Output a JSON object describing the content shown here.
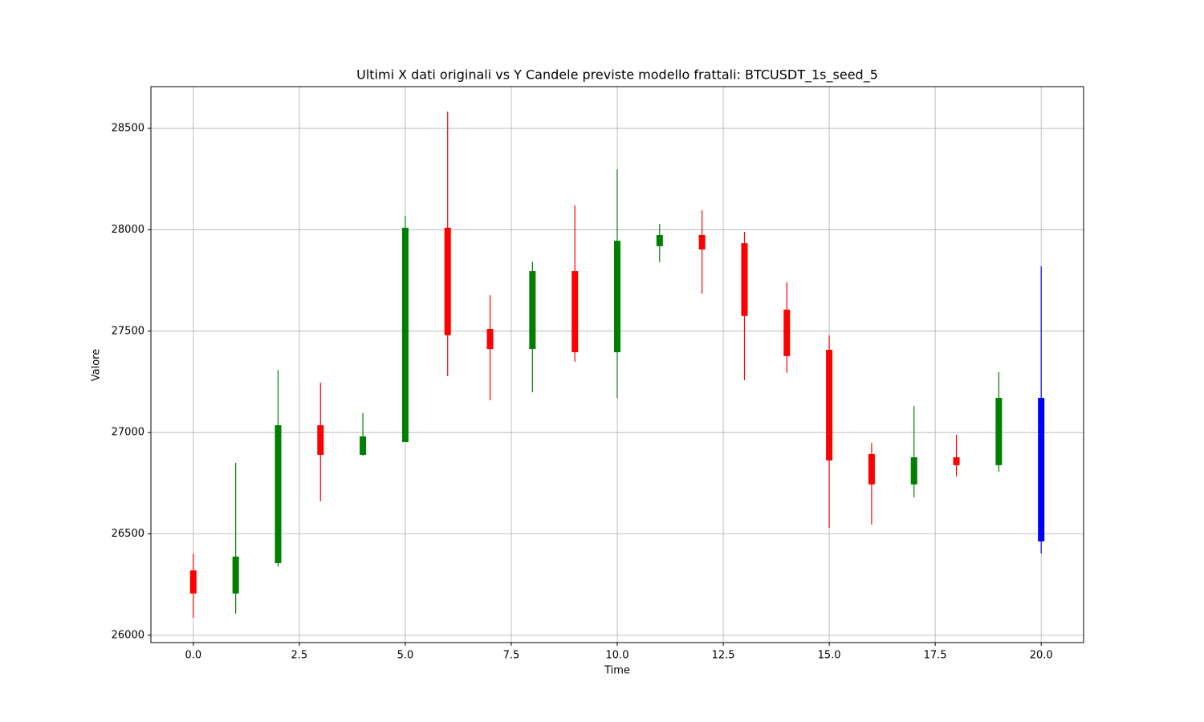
{
  "chart_data": {
    "type": "candlestick",
    "title": "Ultimi X dati originali vs Y Candele previste modello frattali: BTCUSDT_1s_seed_5",
    "x_label": "Time",
    "y_label": "Valore",
    "x": [
      0,
      1,
      2,
      3,
      4,
      5,
      6,
      7,
      8,
      9,
      10,
      11,
      12,
      13,
      14,
      15,
      16,
      17,
      18,
      19,
      20
    ],
    "open": [
      26320,
      26206,
      26356,
      27036,
      26890,
      26953,
      28010,
      27511,
      27412,
      27796,
      27396,
      27919,
      27974,
      27934,
      27606,
      27408,
      26894,
      26744,
      26878,
      26839,
      27171
    ],
    "high": [
      26403,
      26851,
      27309,
      27246,
      27096,
      28069,
      28583,
      27677,
      27843,
      28120,
      28298,
      28029,
      28097,
      27990,
      27741,
      27480,
      26949,
      27131,
      26989,
      27298,
      27820
    ],
    "low": [
      26087,
      26107,
      26340,
      26661,
      26886,
      26953,
      27278,
      27159,
      27199,
      27349,
      27171,
      27840,
      27685,
      27258,
      27294,
      26530,
      26546,
      26680,
      26783,
      26807,
      26404
    ],
    "close": [
      26206,
      26388,
      27036,
      26890,
      26981,
      28010,
      27480,
      27412,
      27796,
      27396,
      27946,
      27974,
      27903,
      27575,
      27377,
      26862,
      26744,
      26878,
      26839,
      27171,
      26463
    ],
    "colors": [
      "red",
      "green",
      "green",
      "red",
      "green",
      "green",
      "red",
      "red",
      "green",
      "red",
      "green",
      "green",
      "red",
      "red",
      "red",
      "red",
      "red",
      "green",
      "red",
      "green",
      "blue"
    ],
    "xlim": [
      -1,
      21
    ],
    "ylim": [
      25964,
      28706
    ],
    "xticks": [
      {
        "value": 0,
        "label": "0.0"
      },
      2.5,
      {
        "value": 5,
        "label": "5.0"
      },
      7.5,
      {
        "value": 10,
        "label": "10.0"
      },
      12.5,
      {
        "value": 15,
        "label": "15.0"
      },
      17.5,
      {
        "value": 20,
        "label": "20.0"
      }
    ],
    "yticks": [
      26000,
      26500,
      27000,
      27500,
      28000,
      28500
    ],
    "grid": true
  }
}
